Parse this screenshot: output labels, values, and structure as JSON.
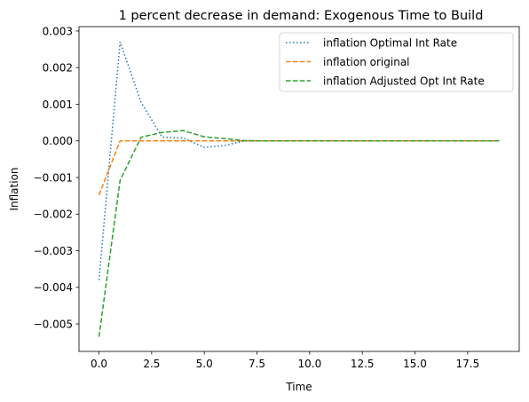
{
  "chart_data": {
    "type": "line",
    "title": "1 percent decrease in demand: Exogenous Time to Build",
    "xlabel": "Time",
    "ylabel": "Inflation",
    "xlim": [
      -0.95,
      19.95
    ],
    "ylim": [
      -0.00575,
      0.00312
    ],
    "x_ticks": [
      0,
      2.5,
      5,
      7.5,
      10,
      12.5,
      15,
      17.5
    ],
    "x_tick_labels": [
      "0.0",
      "2.5",
      "5.0",
      "7.5",
      "10.0",
      "12.5",
      "15.0",
      "17.5"
    ],
    "y_ticks": [
      -0.005,
      -0.004,
      -0.003,
      -0.002,
      -0.001,
      0,
      0.001,
      0.002,
      0.003
    ],
    "y_tick_labels": [
      "−0.005",
      "−0.004",
      "−0.003",
      "−0.002",
      "−0.001",
      "0.000",
      "0.001",
      "0.002",
      "0.003"
    ],
    "grid": false,
    "legend_position": "top-right",
    "x": [
      0,
      1,
      2,
      3,
      4,
      5,
      6,
      7,
      8,
      9,
      10,
      11,
      12,
      13,
      14,
      15,
      16,
      17,
      18,
      19
    ],
    "series": [
      {
        "name": "inflation Optimal Int Rate",
        "color": "#1f77b4",
        "style": "dotted",
        "values": [
          -0.0038,
          0.0027,
          0.00105,
          0.0001,
          8e-05,
          -0.00018,
          -0.00012,
          1e-05,
          0,
          0,
          0,
          0,
          0,
          0,
          0,
          0,
          0,
          0,
          0,
          0
        ]
      },
      {
        "name": "inflation original",
        "color": "#ff7f0e",
        "style": "dashed",
        "values": [
          -0.00148,
          0,
          0,
          0,
          0,
          0,
          0,
          0,
          0,
          0,
          0,
          0,
          0,
          0,
          0,
          0,
          0,
          0,
          0,
          0
        ]
      },
      {
        "name": "inflation Adjusted Opt Int Rate",
        "color": "#2ca02c",
        "style": "dashed",
        "values": [
          -0.00535,
          -0.00108,
          0.0001,
          0.00023,
          0.00028,
          0.00011,
          6e-05,
          0,
          0,
          0,
          0,
          0,
          0,
          0,
          0,
          0,
          0,
          0,
          0,
          0
        ]
      }
    ]
  }
}
